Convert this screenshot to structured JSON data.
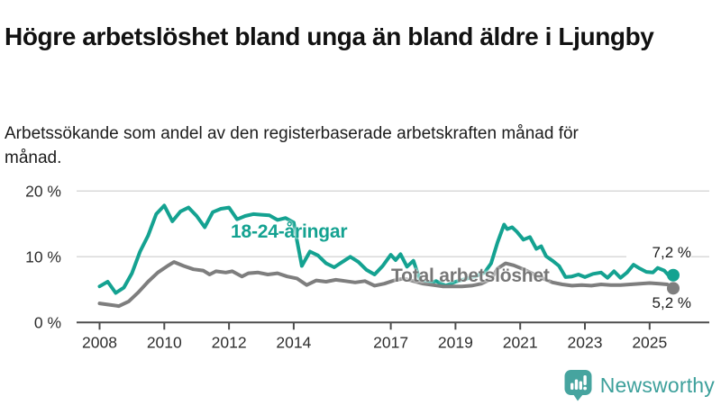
{
  "header": {
    "title": "Högre arbetslöshet bland unga än bland äldre i Ljungby",
    "subtitle": "Arbetssökande som andel av den registerbaserade arbetskraften månad för månad."
  },
  "chart_data": {
    "type": "line",
    "title": "Högre arbetslöshet bland unga än bland äldre i Ljungby",
    "unit": "%",
    "grid": "horizontal-only",
    "legend_position": "inline-annotations",
    "x_axis": {
      "ticks": [
        2008,
        2010,
        2012,
        2014,
        2017,
        2019,
        2021,
        2023,
        2025
      ],
      "labels": [
        "2008",
        "2010",
        "2012",
        "2014",
        "2017",
        "2019",
        "2021",
        "2023",
        "2025"
      ],
      "range": [
        2007.3,
        2026.8
      ]
    },
    "y_axis": {
      "ticks": [
        0,
        10,
        20
      ],
      "labels": [
        "0 %",
        "10 %",
        "20 %"
      ],
      "range": [
        0,
        20.5
      ]
    },
    "colors": {
      "young": "#14a291",
      "total": "#7e7e7e",
      "grid": "#d9d9d9",
      "axis": "#4d4d4d",
      "tick_label": "#2e2e2e"
    },
    "series": [
      {
        "name": "18-24-åringar",
        "color": "#14a291",
        "end_label": "7,2 %",
        "end_value": 7.2,
        "points": [
          [
            2008.0,
            5.5
          ],
          [
            2008.25,
            6.2
          ],
          [
            2008.5,
            4.5
          ],
          [
            2008.75,
            5.3
          ],
          [
            2009.0,
            7.5
          ],
          [
            2009.25,
            10.8
          ],
          [
            2009.5,
            13.2
          ],
          [
            2009.75,
            16.5
          ],
          [
            2010.0,
            17.8
          ],
          [
            2010.25,
            15.4
          ],
          [
            2010.5,
            16.9
          ],
          [
            2010.75,
            17.5
          ],
          [
            2011.0,
            16.2
          ],
          [
            2011.25,
            14.5
          ],
          [
            2011.5,
            16.8
          ],
          [
            2011.75,
            17.3
          ],
          [
            2012.0,
            17.5
          ],
          [
            2012.25,
            15.7
          ],
          [
            2012.5,
            16.2
          ],
          [
            2012.75,
            16.5
          ],
          [
            2013.0,
            16.4
          ],
          [
            2013.25,
            16.3
          ],
          [
            2013.5,
            15.6
          ],
          [
            2013.75,
            15.9
          ],
          [
            2014.0,
            15.2
          ],
          [
            2014.1,
            12.5
          ],
          [
            2014.25,
            8.6
          ],
          [
            2014.5,
            10.8
          ],
          [
            2014.75,
            10.2
          ],
          [
            2015.0,
            9.0
          ],
          [
            2015.25,
            8.4
          ],
          [
            2015.5,
            9.2
          ],
          [
            2015.75,
            10.0
          ],
          [
            2016.0,
            9.2
          ],
          [
            2016.25,
            8.0
          ],
          [
            2016.5,
            7.3
          ],
          [
            2016.75,
            8.6
          ],
          [
            2017.0,
            10.3
          ],
          [
            2017.15,
            9.5
          ],
          [
            2017.3,
            10.4
          ],
          [
            2017.5,
            8.5
          ],
          [
            2017.7,
            9.4
          ],
          [
            2017.9,
            6.5
          ],
          [
            2018.1,
            5.9
          ],
          [
            2018.4,
            6.3
          ],
          [
            2018.7,
            5.6
          ],
          [
            2019.0,
            6.2
          ],
          [
            2019.3,
            6.6
          ],
          [
            2019.6,
            7.0
          ],
          [
            2019.9,
            7.6
          ],
          [
            2020.1,
            9.0
          ],
          [
            2020.3,
            12.2
          ],
          [
            2020.5,
            14.9
          ],
          [
            2020.6,
            14.2
          ],
          [
            2020.75,
            14.5
          ],
          [
            2020.9,
            13.8
          ],
          [
            2021.1,
            12.6
          ],
          [
            2021.3,
            13.0
          ],
          [
            2021.5,
            11.2
          ],
          [
            2021.65,
            11.6
          ],
          [
            2021.8,
            10.1
          ],
          [
            2022.0,
            9.4
          ],
          [
            2022.2,
            8.6
          ],
          [
            2022.4,
            6.9
          ],
          [
            2022.6,
            7.0
          ],
          [
            2022.8,
            7.3
          ],
          [
            2023.0,
            6.9
          ],
          [
            2023.25,
            7.4
          ],
          [
            2023.5,
            7.6
          ],
          [
            2023.7,
            6.8
          ],
          [
            2023.9,
            7.8
          ],
          [
            2024.1,
            6.8
          ],
          [
            2024.3,
            7.6
          ],
          [
            2024.5,
            8.8
          ],
          [
            2024.7,
            8.2
          ],
          [
            2024.9,
            7.7
          ],
          [
            2025.1,
            7.6
          ],
          [
            2025.25,
            8.3
          ],
          [
            2025.45,
            7.9
          ],
          [
            2025.6,
            7.1
          ],
          [
            2025.73,
            7.2
          ]
        ]
      },
      {
        "name": "Total arbetslöshet",
        "color": "#7e7e7e",
        "end_label": "5,2 %",
        "end_value": 5.2,
        "points": [
          [
            2008.0,
            2.9
          ],
          [
            2008.3,
            2.7
          ],
          [
            2008.6,
            2.5
          ],
          [
            2008.9,
            3.2
          ],
          [
            2009.2,
            4.6
          ],
          [
            2009.5,
            6.2
          ],
          [
            2009.8,
            7.6
          ],
          [
            2010.1,
            8.6
          ],
          [
            2010.3,
            9.2
          ],
          [
            2010.6,
            8.6
          ],
          [
            2010.9,
            8.1
          ],
          [
            2011.2,
            7.9
          ],
          [
            2011.4,
            7.3
          ],
          [
            2011.6,
            7.8
          ],
          [
            2011.9,
            7.6
          ],
          [
            2012.1,
            7.8
          ],
          [
            2012.4,
            7.0
          ],
          [
            2012.6,
            7.5
          ],
          [
            2012.9,
            7.6
          ],
          [
            2013.2,
            7.3
          ],
          [
            2013.5,
            7.5
          ],
          [
            2013.8,
            7.0
          ],
          [
            2014.1,
            6.7
          ],
          [
            2014.4,
            5.7
          ],
          [
            2014.7,
            6.4
          ],
          [
            2015.0,
            6.2
          ],
          [
            2015.3,
            6.5
          ],
          [
            2015.6,
            6.3
          ],
          [
            2015.9,
            6.1
          ],
          [
            2016.2,
            6.3
          ],
          [
            2016.5,
            5.6
          ],
          [
            2016.8,
            5.9
          ],
          [
            2017.1,
            6.4
          ],
          [
            2017.4,
            6.7
          ],
          [
            2017.7,
            6.3
          ],
          [
            2018.0,
            5.9
          ],
          [
            2018.3,
            5.7
          ],
          [
            2018.6,
            5.5
          ],
          [
            2018.9,
            5.5
          ],
          [
            2019.2,
            5.5
          ],
          [
            2019.5,
            5.6
          ],
          [
            2019.8,
            5.9
          ],
          [
            2020.1,
            6.6
          ],
          [
            2020.3,
            8.2
          ],
          [
            2020.55,
            9.0
          ],
          [
            2020.8,
            8.7
          ],
          [
            2021.1,
            8.1
          ],
          [
            2021.4,
            7.4
          ],
          [
            2021.7,
            6.7
          ],
          [
            2022.0,
            6.1
          ],
          [
            2022.3,
            5.8
          ],
          [
            2022.6,
            5.6
          ],
          [
            2022.9,
            5.7
          ],
          [
            2023.2,
            5.6
          ],
          [
            2023.5,
            5.8
          ],
          [
            2023.8,
            5.7
          ],
          [
            2024.1,
            5.7
          ],
          [
            2024.4,
            5.8
          ],
          [
            2024.7,
            5.9
          ],
          [
            2025.0,
            6.0
          ],
          [
            2025.3,
            5.9
          ],
          [
            2025.55,
            5.8
          ],
          [
            2025.73,
            5.2
          ]
        ]
      }
    ]
  },
  "footer": {
    "brand": "Newsworthy",
    "logo_icon": "bar-chart-speech-bubble-icon",
    "brand_color": "#3da09b",
    "logo_color": "#46a49f"
  }
}
